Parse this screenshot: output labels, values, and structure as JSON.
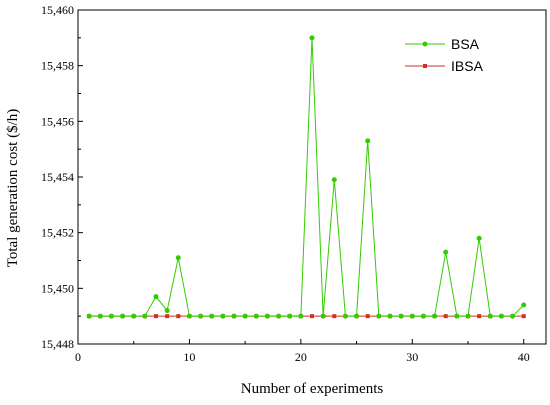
{
  "chart_data": {
    "type": "line",
    "title": "",
    "xlabel": "Number of experiments",
    "ylabel": "Total generation cost ($/h)",
    "xlim": [
      0,
      42
    ],
    "ylim": [
      15448,
      15460
    ],
    "xticks": [
      0,
      10,
      20,
      30,
      40
    ],
    "xtick_labels": [
      "0",
      "10",
      "20",
      "30",
      "40"
    ],
    "yticks": [
      15448,
      15450,
      15452,
      15454,
      15456,
      15458,
      15460
    ],
    "ytick_labels": [
      "15,448",
      "15,450",
      "15,452",
      "15,454",
      "15,456",
      "15,458",
      "15,460"
    ],
    "grid": false,
    "legend_position": "top-right",
    "x": [
      1,
      2,
      3,
      4,
      5,
      6,
      7,
      8,
      9,
      10,
      11,
      12,
      13,
      14,
      15,
      16,
      17,
      18,
      19,
      20,
      21,
      22,
      23,
      24,
      25,
      26,
      27,
      28,
      29,
      30,
      31,
      32,
      33,
      34,
      35,
      36,
      37,
      38,
      39,
      40
    ],
    "series": [
      {
        "name": "BSA",
        "color": "#33cc00",
        "marker": "circle",
        "values": [
          15449.0,
          15449.0,
          15449.0,
          15449.0,
          15449.0,
          15449.0,
          15449.7,
          15449.2,
          15451.1,
          15449.0,
          15449.0,
          15449.0,
          15449.0,
          15449.0,
          15449.0,
          15449.0,
          15449.0,
          15449.0,
          15449.0,
          15449.0,
          15459.0,
          15449.0,
          15453.9,
          15449.0,
          15449.0,
          15455.3,
          15449.0,
          15449.0,
          15449.0,
          15449.0,
          15449.0,
          15449.0,
          15451.3,
          15449.0,
          15449.0,
          15451.8,
          15449.0,
          15449.0,
          15449.0,
          15449.4
        ]
      },
      {
        "name": "IBSA",
        "color": "#cc3322",
        "marker": "square",
        "values": [
          15449.0,
          15449.0,
          15449.0,
          15449.0,
          15449.0,
          15449.0,
          15449.0,
          15449.0,
          15449.0,
          15449.0,
          15449.0,
          15449.0,
          15449.0,
          15449.0,
          15449.0,
          15449.0,
          15449.0,
          15449.0,
          15449.0,
          15449.0,
          15449.0,
          15449.0,
          15449.0,
          15449.0,
          15449.0,
          15449.0,
          15449.0,
          15449.0,
          15449.0,
          15449.0,
          15449.0,
          15449.0,
          15449.0,
          15449.0,
          15449.0,
          15449.0,
          15449.0,
          15449.0,
          15449.0,
          15449.0
        ]
      }
    ]
  }
}
